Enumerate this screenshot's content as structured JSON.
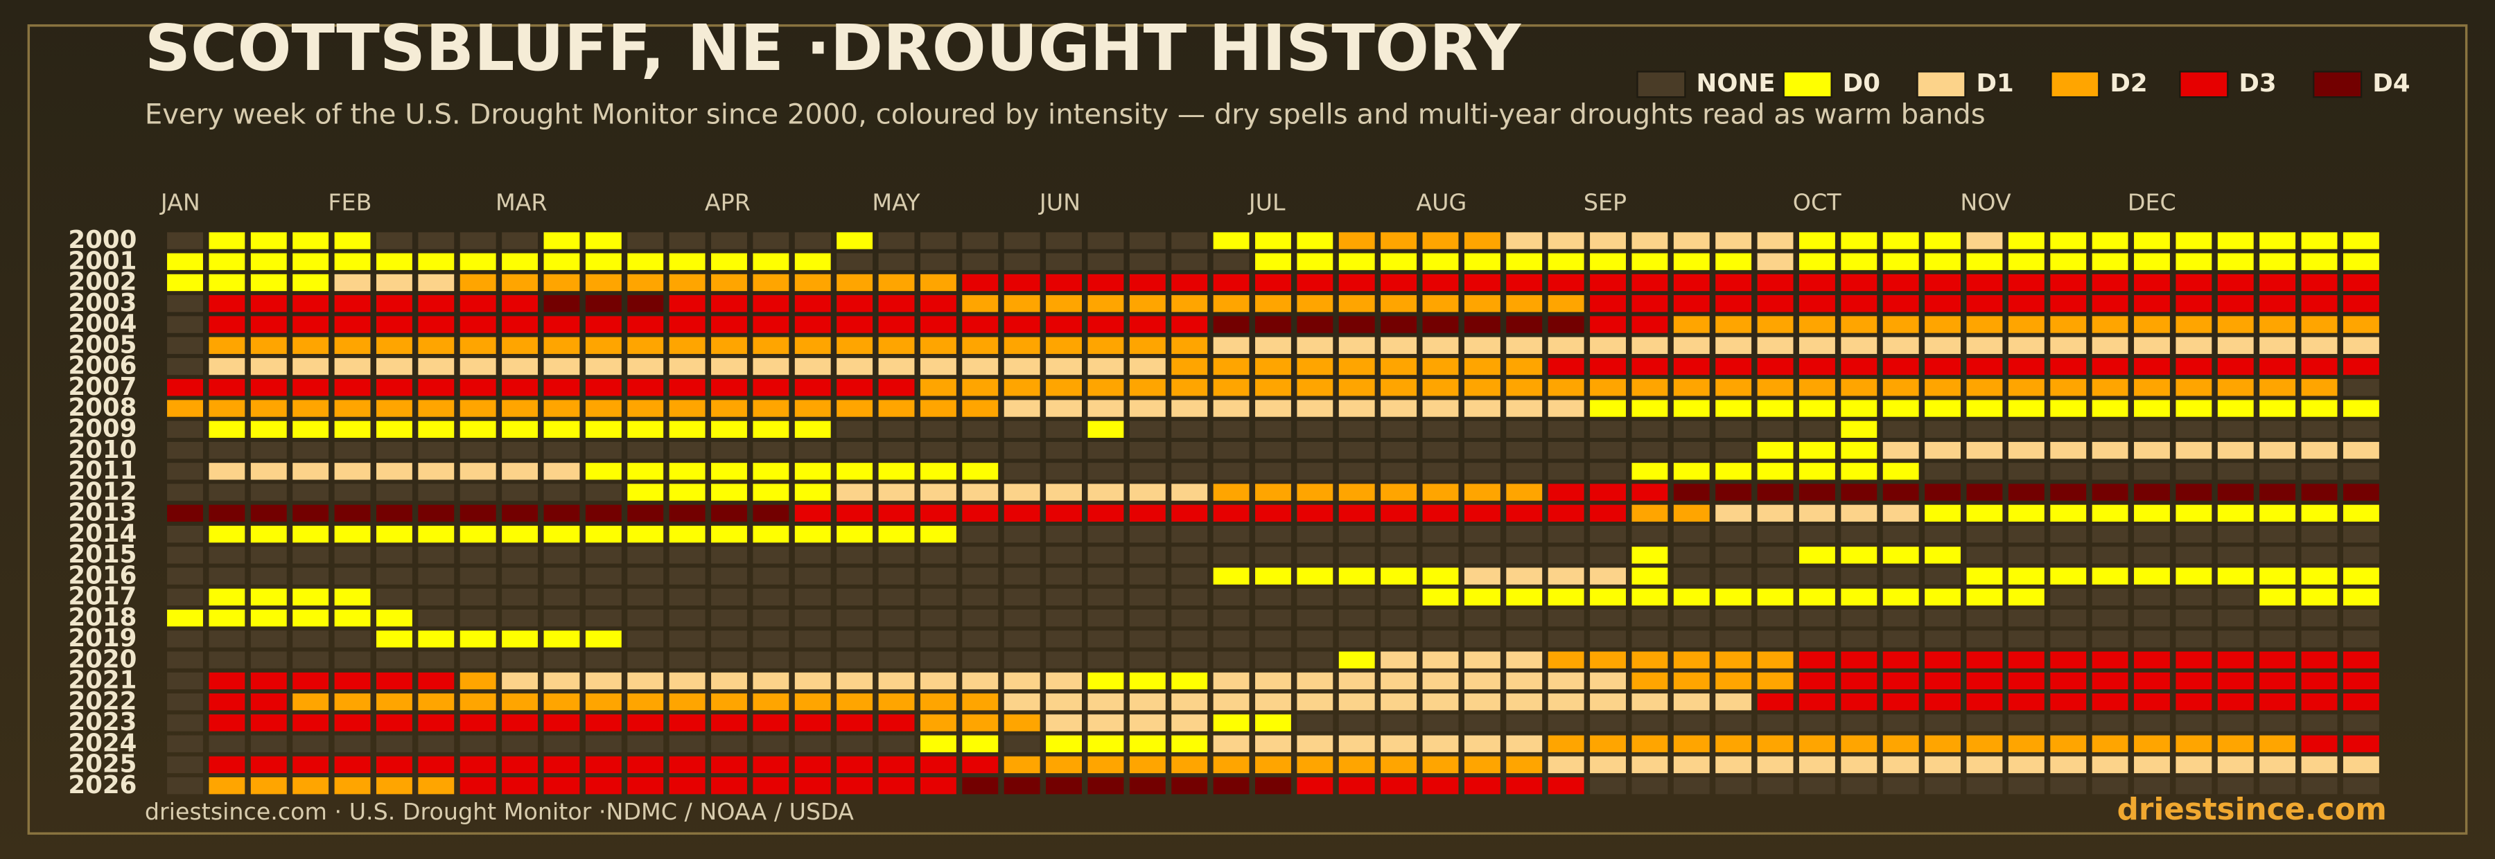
{
  "chart_data": {
    "type": "heatmap",
    "title": "SCOTTSBLUFF, NE ·DROUGHT HISTORY",
    "subtitle": "Every week of the U.S. Drought Monitor since 2000, coloured by intensity — dry spells and multi-year droughts read as warm bands",
    "source": "driestsince.com  · U.S. Drought Monitor ·NDMC / NOAA / USDA",
    "brand": "driestsince.com",
    "levels": [
      {
        "name": "NONE",
        "color": "#4a3c27"
      },
      {
        "name": "D0",
        "color": "#ffff00"
      },
      {
        "name": "D1",
        "color": "#fcd38a"
      },
      {
        "name": "D2",
        "color": "#ffa500"
      },
      {
        "name": "D3",
        "color": "#e60000"
      },
      {
        "name": "D4",
        "color": "#730000"
      }
    ],
    "categories": [
      "JAN",
      null,
      null,
      null,
      "FEB",
      null,
      null,
      null,
      "MAR",
      null,
      null,
      null,
      null,
      "APR",
      null,
      null,
      null,
      "MAY",
      null,
      null,
      null,
      "JUN",
      null,
      null,
      null,
      null,
      "JUL",
      null,
      null,
      null,
      "AUG",
      null,
      null,
      null,
      "SEP",
      null,
      null,
      null,
      null,
      "OCT",
      null,
      null,
      null,
      "NOV",
      null,
      null,
      null,
      "DEC",
      null,
      null,
      null,
      null,
      null
    ],
    "rows": [
      2000,
      2001,
      2002,
      2003,
      2004,
      2005,
      2006,
      2007,
      2008,
      2009,
      2010,
      2011,
      2012,
      2013,
      2014,
      2015,
      2016,
      2017,
      2018,
      2019,
      2020,
      2021,
      2022,
      2023,
      2024,
      2025,
      2026
    ],
    "values": [
      [
        0,
        1,
        1,
        1,
        1,
        0,
        0,
        0,
        0,
        1,
        1,
        0,
        0,
        0,
        0,
        0,
        1,
        0,
        0,
        0,
        0,
        0,
        0,
        0,
        0,
        1,
        1,
        1,
        3,
        3,
        3,
        3,
        2,
        2,
        2,
        2,
        2,
        2,
        2,
        1,
        1,
        1,
        1,
        2,
        1,
        1,
        1,
        1,
        1,
        1,
        1,
        1,
        1
      ],
      [
        1,
        1,
        1,
        1,
        1,
        1,
        1,
        1,
        1,
        1,
        1,
        1,
        1,
        1,
        1,
        1,
        0,
        0,
        0,
        0,
        0,
        0,
        0,
        0,
        0,
        0,
        1,
        1,
        1,
        1,
        1,
        1,
        1,
        1,
        1,
        1,
        1,
        1,
        2,
        1,
        1,
        1,
        1,
        1,
        1,
        1,
        1,
        1,
        1,
        1,
        1,
        1,
        1
      ],
      [
        1,
        1,
        1,
        1,
        2,
        2,
        2,
        3,
        3,
        3,
        3,
        3,
        3,
        3,
        3,
        3,
        3,
        3,
        3,
        4,
        4,
        4,
        4,
        4,
        4,
        4,
        4,
        4,
        4,
        4,
        4,
        4,
        4,
        4,
        4,
        4,
        4,
        4,
        4,
        4,
        4,
        4,
        4,
        4,
        4,
        4,
        4,
        4,
        4,
        4,
        4,
        4,
        4
      ],
      [
        0,
        4,
        4,
        4,
        4,
        4,
        4,
        4,
        4,
        5,
        5,
        5,
        4,
        4,
        4,
        4,
        4,
        4,
        4,
        3,
        3,
        3,
        3,
        3,
        3,
        3,
        3,
        3,
        3,
        3,
        3,
        3,
        3,
        3,
        4,
        4,
        4,
        4,
        4,
        4,
        4,
        4,
        4,
        4,
        4,
        4,
        4,
        4,
        4,
        4,
        4,
        4,
        4
      ],
      [
        0,
        4,
        4,
        4,
        4,
        4,
        4,
        4,
        4,
        4,
        4,
        4,
        4,
        4,
        4,
        4,
        4,
        4,
        4,
        4,
        4,
        4,
        4,
        4,
        4,
        5,
        5,
        5,
        5,
        5,
        5,
        5,
        5,
        5,
        4,
        4,
        3,
        3,
        3,
        3,
        3,
        3,
        3,
        3,
        3,
        3,
        3,
        3,
        3,
        3,
        3,
        3,
        3
      ],
      [
        0,
        3,
        3,
        3,
        3,
        3,
        3,
        3,
        3,
        3,
        3,
        3,
        3,
        3,
        3,
        3,
        3,
        3,
        3,
        3,
        3,
        3,
        3,
        3,
        3,
        2,
        2,
        2,
        2,
        2,
        2,
        2,
        2,
        2,
        2,
        2,
        2,
        2,
        2,
        2,
        2,
        2,
        2,
        2,
        2,
        2,
        2,
        2,
        2,
        2,
        2,
        2,
        2
      ],
      [
        0,
        2,
        2,
        2,
        2,
        2,
        2,
        2,
        2,
        2,
        2,
        2,
        2,
        2,
        2,
        2,
        2,
        2,
        2,
        2,
        2,
        2,
        2,
        2,
        3,
        3,
        3,
        3,
        3,
        3,
        3,
        3,
        3,
        4,
        4,
        4,
        4,
        4,
        4,
        4,
        4,
        4,
        4,
        4,
        4,
        4,
        4,
        4,
        4,
        4,
        4,
        4,
        4
      ],
      [
        4,
        4,
        4,
        4,
        4,
        4,
        4,
        4,
        4,
        4,
        4,
        4,
        4,
        4,
        4,
        4,
        4,
        4,
        3,
        3,
        3,
        3,
        3,
        3,
        3,
        3,
        3,
        3,
        3,
        3,
        3,
        3,
        3,
        3,
        3,
        3,
        3,
        3,
        3,
        3,
        3,
        3,
        3,
        3,
        3,
        3,
        3,
        3,
        3,
        3,
        3,
        3,
        0
      ],
      [
        3,
        3,
        3,
        3,
        3,
        3,
        3,
        3,
        3,
        3,
        3,
        3,
        3,
        3,
        3,
        3,
        3,
        3,
        3,
        3,
        2,
        2,
        2,
        2,
        2,
        2,
        2,
        2,
        2,
        2,
        2,
        2,
        2,
        2,
        1,
        1,
        1,
        1,
        1,
        1,
        1,
        1,
        1,
        1,
        1,
        1,
        1,
        1,
        1,
        1,
        1,
        1,
        1
      ],
      [
        0,
        1,
        1,
        1,
        1,
        1,
        1,
        1,
        1,
        1,
        1,
        1,
        1,
        1,
        1,
        1,
        0,
        0,
        0,
        0,
        0,
        0,
        1,
        0,
        0,
        0,
        0,
        0,
        0,
        0,
        0,
        0,
        0,
        0,
        0,
        0,
        0,
        0,
        0,
        0,
        1,
        0,
        0,
        0,
        0,
        0,
        0,
        0,
        0,
        0,
        0,
        0,
        0
      ],
      [
        0,
        0,
        0,
        0,
        0,
        0,
        0,
        0,
        0,
        0,
        0,
        0,
        0,
        0,
        0,
        0,
        0,
        0,
        0,
        0,
        0,
        0,
        0,
        0,
        0,
        0,
        0,
        0,
        0,
        0,
        0,
        0,
        0,
        0,
        0,
        0,
        0,
        0,
        1,
        1,
        1,
        2,
        2,
        2,
        2,
        2,
        2,
        2,
        2,
        2,
        2,
        2,
        2
      ],
      [
        0,
        2,
        2,
        2,
        2,
        2,
        2,
        2,
        2,
        2,
        1,
        1,
        1,
        1,
        1,
        1,
        1,
        1,
        1,
        1,
        0,
        0,
        0,
        0,
        0,
        0,
        0,
        0,
        0,
        0,
        0,
        0,
        0,
        0,
        0,
        1,
        1,
        1,
        1,
        1,
        1,
        1,
        0,
        0,
        0,
        0,
        0,
        0,
        0,
        0,
        0,
        0,
        0
      ],
      [
        0,
        0,
        0,
        0,
        0,
        0,
        0,
        0,
        0,
        0,
        0,
        1,
        1,
        1,
        1,
        1,
        2,
        2,
        2,
        2,
        2,
        2,
        2,
        2,
        2,
        3,
        3,
        3,
        3,
        3,
        3,
        3,
        3,
        4,
        4,
        4,
        5,
        5,
        5,
        5,
        5,
        5,
        5,
        5,
        5,
        5,
        5,
        5,
        5,
        5,
        5,
        5,
        5
      ],
      [
        5,
        5,
        5,
        5,
        5,
        5,
        5,
        5,
        5,
        5,
        5,
        5,
        5,
        5,
        5,
        4,
        4,
        4,
        4,
        4,
        4,
        4,
        4,
        4,
        4,
        4,
        4,
        4,
        4,
        4,
        4,
        4,
        4,
        4,
        4,
        3,
        3,
        2,
        2,
        2,
        2,
        2,
        1,
        1,
        1,
        1,
        1,
        1,
        1,
        1,
        1,
        1,
        1
      ],
      [
        0,
        1,
        1,
        1,
        1,
        1,
        1,
        1,
        1,
        1,
        1,
        1,
        1,
        1,
        1,
        1,
        1,
        1,
        1,
        0,
        0,
        0,
        0,
        0,
        0,
        0,
        0,
        0,
        0,
        0,
        0,
        0,
        0,
        0,
        0,
        0,
        0,
        0,
        0,
        0,
        0,
        0,
        0,
        0,
        0,
        0,
        0,
        0,
        0,
        0,
        0,
        0,
        0
      ],
      [
        0,
        0,
        0,
        0,
        0,
        0,
        0,
        0,
        0,
        0,
        0,
        0,
        0,
        0,
        0,
        0,
        0,
        0,
        0,
        0,
        0,
        0,
        0,
        0,
        0,
        0,
        0,
        0,
        0,
        0,
        0,
        0,
        0,
        0,
        0,
        1,
        0,
        0,
        0,
        1,
        1,
        1,
        1,
        0,
        0,
        0,
        0,
        0,
        0,
        0,
        0,
        0,
        0
      ],
      [
        0,
        0,
        0,
        0,
        0,
        0,
        0,
        0,
        0,
        0,
        0,
        0,
        0,
        0,
        0,
        0,
        0,
        0,
        0,
        0,
        0,
        0,
        0,
        0,
        0,
        1,
        1,
        1,
        1,
        1,
        1,
        2,
        2,
        2,
        2,
        1,
        0,
        0,
        0,
        0,
        0,
        0,
        0,
        1,
        1,
        1,
        1,
        1,
        1,
        1,
        1,
        1,
        1
      ],
      [
        0,
        1,
        1,
        1,
        1,
        0,
        0,
        0,
        0,
        0,
        0,
        0,
        0,
        0,
        0,
        0,
        0,
        0,
        0,
        0,
        0,
        0,
        0,
        0,
        0,
        0,
        0,
        0,
        0,
        0,
        1,
        1,
        1,
        1,
        1,
        1,
        1,
        1,
        1,
        1,
        1,
        1,
        1,
        1,
        1,
        0,
        0,
        0,
        0,
        0,
        1,
        1,
        1
      ],
      [
        1,
        1,
        1,
        1,
        1,
        1,
        0,
        0,
        0,
        0,
        0,
        0,
        0,
        0,
        0,
        0,
        0,
        0,
        0,
        0,
        0,
        0,
        0,
        0,
        0,
        0,
        0,
        0,
        0,
        0,
        0,
        0,
        0,
        0,
        0,
        0,
        0,
        0,
        0,
        0,
        0,
        0,
        0,
        0,
        0,
        0,
        0,
        0,
        0,
        0,
        0,
        0,
        0
      ],
      [
        0,
        0,
        0,
        0,
        0,
        1,
        1,
        1,
        1,
        1,
        1,
        0,
        0,
        0,
        0,
        0,
        0,
        0,
        0,
        0,
        0,
        0,
        0,
        0,
        0,
        0,
        0,
        0,
        0,
        0,
        0,
        0,
        0,
        0,
        0,
        0,
        0,
        0,
        0,
        0,
        0,
        0,
        0,
        0,
        0,
        0,
        0,
        0,
        0,
        0,
        0,
        0,
        0
      ],
      [
        0,
        0,
        0,
        0,
        0,
        0,
        0,
        0,
        0,
        0,
        0,
        0,
        0,
        0,
        0,
        0,
        0,
        0,
        0,
        0,
        0,
        0,
        0,
        0,
        0,
        0,
        0,
        0,
        1,
        2,
        2,
        2,
        2,
        3,
        3,
        3,
        3,
        3,
        3,
        4,
        4,
        4,
        4,
        4,
        4,
        4,
        4,
        4,
        4,
        4,
        4,
        4,
        4
      ],
      [
        0,
        4,
        4,
        4,
        4,
        4,
        4,
        3,
        2,
        2,
        2,
        2,
        2,
        2,
        2,
        2,
        2,
        2,
        2,
        2,
        2,
        2,
        1,
        1,
        1,
        2,
        2,
        2,
        2,
        2,
        2,
        2,
        2,
        2,
        2,
        3,
        3,
        3,
        3,
        4,
        4,
        4,
        4,
        4,
        4,
        4,
        4,
        4,
        4,
        4,
        4,
        4,
        4
      ],
      [
        0,
        4,
        4,
        3,
        3,
        3,
        3,
        3,
        3,
        3,
        3,
        3,
        3,
        3,
        3,
        3,
        3,
        3,
        3,
        3,
        2,
        2,
        2,
        2,
        2,
        2,
        2,
        2,
        2,
        2,
        2,
        2,
        2,
        2,
        2,
        2,
        2,
        2,
        4,
        4,
        4,
        4,
        4,
        4,
        4,
        4,
        4,
        4,
        4,
        4,
        4,
        4,
        4
      ],
      [
        0,
        4,
        4,
        4,
        4,
        4,
        4,
        4,
        4,
        4,
        4,
        4,
        4,
        4,
        4,
        4,
        4,
        4,
        3,
        3,
        3,
        2,
        2,
        2,
        2,
        1,
        1,
        0,
        0,
        0,
        0,
        0,
        0,
        0,
        0,
        0,
        0,
        0,
        0,
        0,
        0,
        0,
        0,
        0,
        0,
        0,
        0,
        0,
        0,
        0,
        0,
        0,
        0
      ],
      [
        0,
        0,
        0,
        0,
        0,
        0,
        0,
        0,
        0,
        0,
        0,
        0,
        0,
        0,
        0,
        0,
        0,
        0,
        1,
        1,
        0,
        1,
        1,
        1,
        1,
        2,
        2,
        2,
        2,
        2,
        2,
        2,
        2,
        3,
        3,
        3,
        3,
        3,
        3,
        3,
        3,
        3,
        3,
        3,
        3,
        3,
        3,
        3,
        3,
        3,
        3,
        4,
        4
      ],
      [
        0,
        4,
        4,
        4,
        4,
        4,
        4,
        4,
        4,
        4,
        4,
        4,
        4,
        4,
        4,
        4,
        4,
        4,
        4,
        4,
        3,
        3,
        3,
        3,
        3,
        3,
        3,
        3,
        3,
        3,
        3,
        3,
        3,
        2,
        2,
        2,
        2,
        2,
        2,
        2,
        2,
        2,
        2,
        2,
        2,
        2,
        2,
        2,
        2,
        2,
        2,
        2,
        2
      ],
      [
        0,
        3,
        3,
        3,
        3,
        3,
        3,
        4,
        4,
        4,
        4,
        4,
        4,
        4,
        4,
        4,
        4,
        4,
        4,
        5,
        5,
        5,
        5,
        5,
        5,
        5,
        5,
        4,
        4,
        4,
        4,
        4,
        4,
        4,
        0,
        0,
        0,
        0,
        0,
        0,
        0,
        0,
        0,
        0,
        0,
        0,
        0,
        0,
        0,
        0,
        0,
        0,
        0
      ]
    ]
  }
}
